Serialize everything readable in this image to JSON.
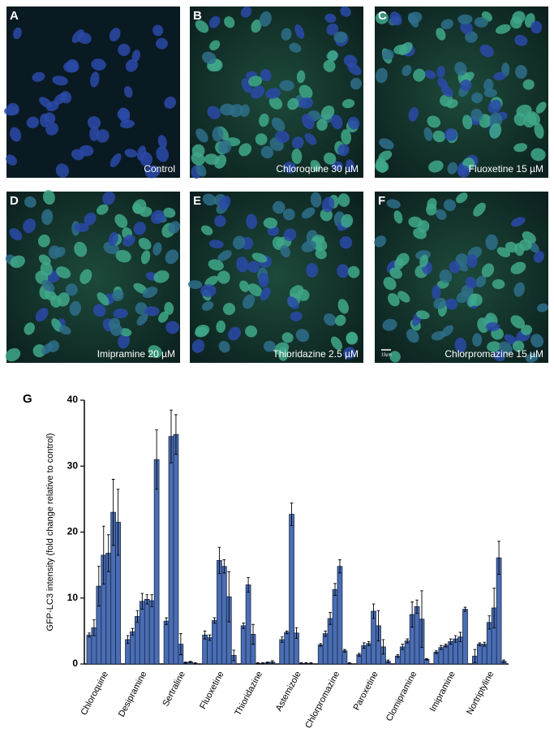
{
  "panels": [
    {
      "letter": "A",
      "caption": "Control"
    },
    {
      "letter": "B",
      "caption": "Chloroquine 30 µM"
    },
    {
      "letter": "C",
      "caption": "Fluoxetine 15 µM"
    },
    {
      "letter": "D",
      "caption": "Imipramine 20 µM"
    },
    {
      "letter": "E",
      "caption": "Thioridazine 2.5 µM"
    },
    {
      "letter": "F",
      "caption": "Chlorpromazine 15 µM",
      "scale_bar": "10µm"
    }
  ],
  "chart_data": {
    "type": "grouped-bar",
    "panel_letter": "G",
    "ylabel": "GFP-LC3 intensity (fold change relative to control)",
    "color": "#4a6db3",
    "ylim": [
      0,
      40
    ],
    "yticks": [
      0,
      10,
      20,
      30,
      40
    ],
    "groups": [
      {
        "label": "Chloroquine",
        "values": [
          4.4,
          5.5,
          11.8,
          16.5,
          16.8,
          23,
          21.5
        ],
        "errors": [
          0.3,
          1.2,
          3,
          4.4,
          2.8,
          5,
          5
        ]
      },
      {
        "label": "Desipramine",
        "values": [
          3.7,
          4.9,
          7.2,
          9.5,
          9.8,
          9.6,
          31
        ],
        "errors": [
          0.6,
          0.5,
          0.9,
          1.2,
          0.7,
          0.9,
          4.5
        ]
      },
      {
        "label": "Sertraline",
        "values": [
          6.5,
          34.5,
          34.8,
          3,
          0.2,
          0.3,
          0.1
        ],
        "errors": [
          0.5,
          4,
          3,
          1.6,
          0.1,
          0.1,
          0.1
        ]
      },
      {
        "label": "Fluoxetine",
        "values": [
          4.4,
          4,
          6.6,
          15.7,
          14.8,
          10.2,
          1.3
        ],
        "errors": [
          0.6,
          0.4,
          0.4,
          2,
          1,
          3.8,
          0.8
        ]
      },
      {
        "label": "Thioridazine",
        "values": [
          5.8,
          12,
          4.5,
          0.1,
          0.1,
          0.2,
          0.3
        ],
        "errors": [
          0.4,
          1.1,
          1.5,
          0.1,
          0.1,
          0.1,
          0.2
        ]
      },
      {
        "label": "Astemizole",
        "values": [
          3.7,
          4.8,
          22.7,
          4.7,
          0.1,
          0.1,
          0.1
        ],
        "errors": [
          0.4,
          0.2,
          1.7,
          0.8,
          0.1,
          0.1,
          0.1
        ]
      },
      {
        "label": "Chlorpromazine",
        "values": [
          2.9,
          4.6,
          6.9,
          11.3,
          14.8,
          2,
          0.1
        ],
        "errors": [
          0.2,
          0.4,
          0.9,
          0.9,
          1,
          0.2,
          0.1
        ]
      },
      {
        "label": "Paroxetine",
        "values": [
          1.4,
          2.8,
          3.1,
          8,
          5.8,
          2.6,
          0.4
        ],
        "errors": [
          0.2,
          0.4,
          0.3,
          1.1,
          2.3,
          1.1,
          0.2
        ]
      },
      {
        "label": "Clomipramine",
        "values": [
          1.2,
          2.6,
          3.5,
          7.5,
          8.7,
          6.8,
          0.7
        ],
        "errors": [
          0.2,
          0.4,
          0.3,
          1.9,
          1,
          4.3,
          0.1
        ]
      },
      {
        "label": "Imipramine",
        "values": [
          1.8,
          2.5,
          2.8,
          3.4,
          3.8,
          4.1,
          8.3
        ],
        "errors": [
          0.2,
          0.3,
          0.2,
          0.4,
          0.5,
          0.7,
          0.3
        ]
      },
      {
        "label": "Nortriptyline",
        "values": [
          1.2,
          3,
          3,
          6.3,
          8.5,
          16.1,
          0.4
        ],
        "errors": [
          1,
          0.2,
          0.3,
          1,
          3,
          2.5,
          0.2
        ]
      }
    ]
  }
}
